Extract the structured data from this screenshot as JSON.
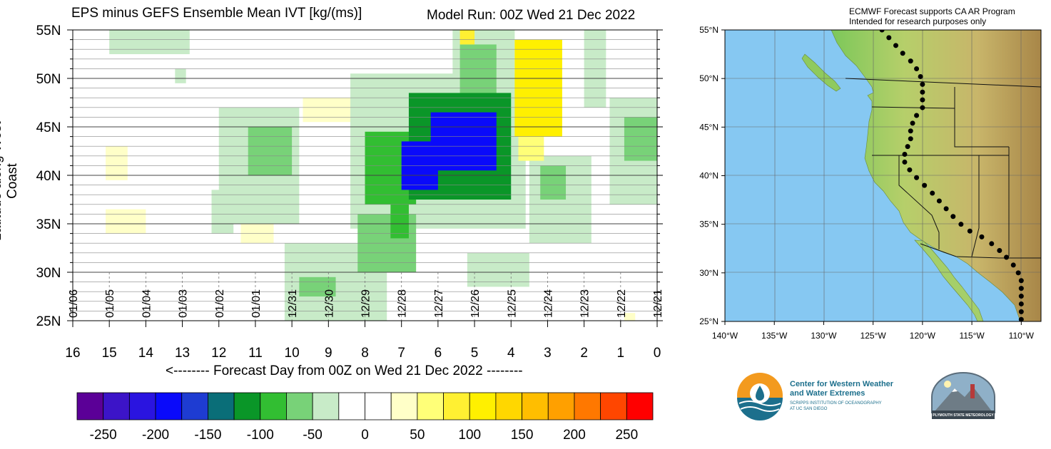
{
  "title": "EPS minus GEFS Ensemble Mean IVT [kg/(ms)]",
  "model_run": "Model Run: 00Z Wed 21 Dec 2022",
  "map_note_line1": "ECMWF Forecast supports CA AR Program",
  "map_note_line2": "Intended for research purposes only",
  "logos": {
    "cw3e_line1": "Center for Western Weather",
    "cw3e_line2": "and Water Extremes",
    "cw3e_line3": "SCRIPPS INSTITUTION OF OCEANOGRAPHY",
    "cw3e_line4": "AT UC SAN DIEGO",
    "psu": "PLYMOUTH STATE METEOROLOGY"
  },
  "chart_data": {
    "type": "heatmap",
    "title": "EPS minus GEFS Ensemble Mean IVT [kg/(ms)]",
    "xlabel": "<-------- Forecast Day from 00Z on Wed 21 Dec 2022 --------",
    "ylabel": "Latitude along West Coast",
    "xlim": [
      16,
      0
    ],
    "ylim": [
      25,
      55
    ],
    "x_ticks": [
      16,
      15,
      14,
      13,
      12,
      11,
      10,
      9,
      8,
      7,
      6,
      5,
      4,
      3,
      2,
      1,
      0
    ],
    "y_ticks": [
      {
        "value": 55,
        "label": "55N"
      },
      {
        "value": 50,
        "label": "50N"
      },
      {
        "value": 45,
        "label": "45N"
      },
      {
        "value": 40,
        "label": "40N"
      },
      {
        "value": 35,
        "label": "35N"
      },
      {
        "value": 30,
        "label": "30N"
      },
      {
        "value": 25,
        "label": "25N"
      }
    ],
    "date_labels": [
      {
        "day": 16,
        "label": "01/06"
      },
      {
        "day": 15,
        "label": "01/05"
      },
      {
        "day": 14,
        "label": "01/04"
      },
      {
        "day": 13,
        "label": "01/03"
      },
      {
        "day": 12,
        "label": "01/02"
      },
      {
        "day": 11,
        "label": "01/01"
      },
      {
        "day": 10,
        "label": "12/31"
      },
      {
        "day": 9,
        "label": "12/30"
      },
      {
        "day": 8,
        "label": "12/29"
      },
      {
        "day": 7,
        "label": "12/28"
      },
      {
        "day": 6,
        "label": "12/27"
      },
      {
        "day": 5,
        "label": "12/26"
      },
      {
        "day": 4,
        "label": "12/25"
      },
      {
        "day": 3,
        "label": "12/24"
      },
      {
        "day": 2,
        "label": "12/23"
      },
      {
        "day": 1,
        "label": "12/22"
      },
      {
        "day": 0,
        "label": "12/21"
      }
    ],
    "colorbar": {
      "labels": [
        -250,
        -200,
        -150,
        -100,
        -50,
        0,
        50,
        100,
        150,
        200,
        250
      ],
      "colors": [
        "#5b0097",
        "#3c14c8",
        "#2a14e0",
        "#0a0afa",
        "#1e3cd2",
        "#0a6e78",
        "#0a9628",
        "#32be32",
        "#78d278",
        "#c8ebc8",
        "#ffffff",
        "#ffffff",
        "#ffffc8",
        "#ffff78",
        "#fff032",
        "#fff000",
        "#ffd700",
        "#ffbe00",
        "#ffa000",
        "#ff7800",
        "#ff4600",
        "#ff0000"
      ]
    },
    "regions": [
      {
        "day": [
          6.2,
          4.4
        ],
        "lat": [
          46.5,
          40.5
        ],
        "value": -200
      },
      {
        "day": [
          7.0,
          6.0
        ],
        "lat": [
          43.5,
          38.5
        ],
        "value": -200
      },
      {
        "day": [
          6.8,
          4.0
        ],
        "lat": [
          48.5,
          37.5
        ],
        "value": -125
      },
      {
        "day": [
          8.0,
          6.6
        ],
        "lat": [
          44.5,
          37.0
        ],
        "value": -100
      },
      {
        "day": [
          7.3,
          6.8
        ],
        "lat": [
          38.0,
          33.5
        ],
        "value": -100
      },
      {
        "day": [
          8.2,
          6.6
        ],
        "lat": [
          36.0,
          30.0
        ],
        "value": -75
      },
      {
        "day": [
          5.4,
          4.4
        ],
        "lat": [
          53.5,
          46.5
        ],
        "value": -75
      },
      {
        "day": [
          11.2,
          10.0
        ],
        "lat": [
          45.0,
          40.0
        ],
        "value": -75
      },
      {
        "day": [
          3.2,
          2.5
        ],
        "lat": [
          41.0,
          37.5
        ],
        "value": -75
      },
      {
        "day": [
          0.9,
          0.0
        ],
        "lat": [
          46.0,
          41.5
        ],
        "value": -75
      },
      {
        "day": [
          9.8,
          8.8
        ],
        "lat": [
          29.5,
          27.5
        ],
        "value": -75
      },
      {
        "day": [
          9.0,
          8.3
        ],
        "lat": [
          28.5,
          25.0
        ],
        "value": -40
      },
      {
        "day": [
          10.2,
          7.4
        ],
        "lat": [
          33.0,
          25.0
        ],
        "value": -40
      },
      {
        "day": [
          8.4,
          3.6
        ],
        "lat": [
          50.5,
          34.5
        ],
        "value": -40
      },
      {
        "day": [
          12.0,
          9.8
        ],
        "lat": [
          47.0,
          35.0
        ],
        "value": -40
      },
      {
        "day": [
          12.2,
          11.6
        ],
        "lat": [
          38.5,
          34.0
        ],
        "value": -40
      },
      {
        "day": [
          3.5,
          1.8
        ],
        "lat": [
          42.0,
          33.0
        ],
        "value": -40
      },
      {
        "day": [
          5.6,
          3.9
        ],
        "lat": [
          55.0,
          45.0
        ],
        "value": -40
      },
      {
        "day": [
          15.0,
          12.8
        ],
        "lat": [
          55.0,
          52.5
        ],
        "value": -40
      },
      {
        "day": [
          2.0,
          1.4
        ],
        "lat": [
          55.0,
          47.0
        ],
        "value": -40
      },
      {
        "day": [
          1.3,
          0.0
        ],
        "lat": [
          48.0,
          37.0
        ],
        "value": -40
      },
      {
        "day": [
          5.2,
          3.5
        ],
        "lat": [
          32.0,
          28.5
        ],
        "value": -40
      },
      {
        "day": [
          13.2,
          12.9
        ],
        "lat": [
          51.0,
          49.5
        ],
        "value": -40
      },
      {
        "day": [
          3.9,
          2.6
        ],
        "lat": [
          54.0,
          44.0
        ],
        "value": 100
      },
      {
        "day": [
          3.8,
          3.1
        ],
        "lat": [
          47.0,
          41.5
        ],
        "value": 60
      },
      {
        "day": [
          5.4,
          5.0
        ],
        "lat": [
          55.0,
          53.5
        ],
        "value": 90
      },
      {
        "day": [
          9.7,
          8.4
        ],
        "lat": [
          48.0,
          45.5
        ],
        "value": 30
      },
      {
        "day": [
          15.1,
          14.5
        ],
        "lat": [
          43.0,
          39.5
        ],
        "value": 25
      },
      {
        "day": [
          15.1,
          14.0
        ],
        "lat": [
          36.5,
          34.0
        ],
        "value": 25
      },
      {
        "day": [
          11.4,
          10.5
        ],
        "lat": [
          36.0,
          33.0
        ],
        "value": 25
      },
      {
        "day": [
          13.5,
          13.1
        ],
        "lat": [
          32.0,
          28.5
        ],
        "value": 20
      },
      {
        "day": [
          12.0,
          11.7
        ],
        "lat": [
          33.5,
          31.5
        ],
        "value": 20
      },
      {
        "day": [
          0.9,
          0.6
        ],
        "lat": [
          25.8,
          25.0
        ],
        "value": 25
      }
    ]
  },
  "map": {
    "lon_ticks": [
      "140°W",
      "135°W",
      "130°W",
      "125°W",
      "120°W",
      "115°W",
      "110°W"
    ],
    "lat_ticks": [
      "55°N",
      "50°N",
      "45°N",
      "40°N",
      "35°N",
      "30°N",
      "25°N"
    ],
    "transect_points": [
      [
        -124.1,
        55.0
      ],
      [
        -123.4,
        54.2
      ],
      [
        -122.7,
        53.4
      ],
      [
        -122.0,
        52.6
      ],
      [
        -121.2,
        51.8
      ],
      [
        -120.6,
        51.0
      ],
      [
        -120.2,
        50.2
      ],
      [
        -120.0,
        49.4
      ],
      [
        -120.0,
        48.6
      ],
      [
        -120.0,
        47.8
      ],
      [
        -120.0,
        47.0
      ],
      [
        -120.6,
        46.2
      ],
      [
        -121.0,
        45.4
      ],
      [
        -121.2,
        44.6
      ],
      [
        -121.2,
        43.8
      ],
      [
        -121.5,
        43.0
      ],
      [
        -121.8,
        42.2
      ],
      [
        -121.8,
        41.4
      ],
      [
        -121.3,
        40.6
      ],
      [
        -120.6,
        39.8
      ],
      [
        -119.8,
        39.0
      ],
      [
        -119.0,
        38.2
      ],
      [
        -118.3,
        37.4
      ],
      [
        -117.6,
        36.6
      ],
      [
        -116.9,
        35.8
      ],
      [
        -116.1,
        35.0
      ],
      [
        -115.2,
        34.3
      ],
      [
        -114.0,
        33.7
      ],
      [
        -113.0,
        33.0
      ],
      [
        -112.2,
        32.3
      ],
      [
        -111.5,
        31.6
      ],
      [
        -110.8,
        30.8
      ],
      [
        -110.3,
        30.0
      ],
      [
        -110.0,
        29.2
      ],
      [
        -110.0,
        28.4
      ],
      [
        -110.0,
        27.6
      ],
      [
        -110.0,
        26.8
      ],
      [
        -110.0,
        26.0
      ],
      [
        -110.0,
        25.2
      ]
    ]
  }
}
